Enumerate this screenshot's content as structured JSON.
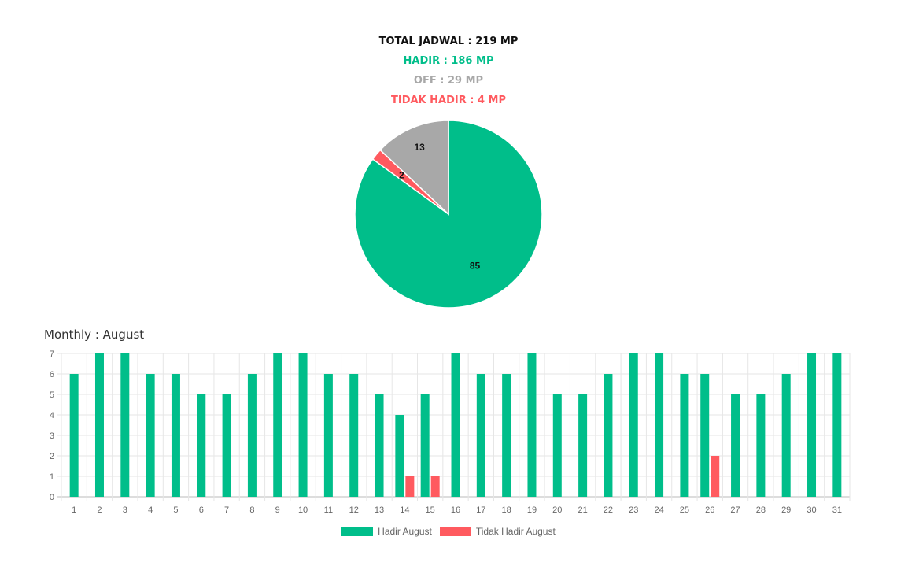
{
  "summary": {
    "total": "TOTAL JADWAL : 219 MP",
    "hadir": "HADIR : 186 MP",
    "off": "OFF : 29 MP",
    "tidak_hadir": "TIDAK HADIR : 4 MP"
  },
  "colors": {
    "hadir": "#00be8a",
    "off": "#a8a8a8",
    "tidak_hadir": "#ff5a5f",
    "total": "#111111"
  },
  "chart_data": [
    {
      "type": "pie",
      "labels": [
        "Hadir",
        "Tidak Hadir",
        "Off"
      ],
      "values": [
        85,
        2,
        13
      ],
      "colors": [
        "#00be8a",
        "#ff5a5f",
        "#a8a8a8"
      ]
    },
    {
      "type": "bar",
      "title": "Monthly : August",
      "categories": [
        "1",
        "2",
        "3",
        "4",
        "5",
        "6",
        "7",
        "8",
        "9",
        "10",
        "11",
        "12",
        "13",
        "14",
        "15",
        "16",
        "17",
        "18",
        "19",
        "20",
        "21",
        "22",
        "23",
        "24",
        "25",
        "26",
        "27",
        "28",
        "29",
        "30",
        "31"
      ],
      "series": [
        {
          "name": "Hadir August",
          "color": "#00be8a",
          "values": [
            6,
            7,
            7,
            6,
            6,
            5,
            5,
            6,
            7,
            7,
            6,
            6,
            5,
            4,
            5,
            7,
            6,
            6,
            7,
            5,
            5,
            6,
            7,
            7,
            6,
            6,
            5,
            5,
            6,
            7,
            7
          ]
        },
        {
          "name": "Tidak Hadir August",
          "color": "#ff5a5f",
          "values": [
            0,
            0,
            0,
            0,
            0,
            0,
            0,
            0,
            0,
            0,
            0,
            0,
            0,
            1,
            1,
            0,
            0,
            0,
            0,
            0,
            0,
            0,
            0,
            0,
            0,
            2,
            0,
            0,
            0,
            0,
            0
          ]
        }
      ],
      "ylim": [
        0,
        7
      ],
      "yticks": [
        0,
        1,
        2,
        3,
        4,
        5,
        6,
        7
      ],
      "grid": true,
      "legend": "bottom"
    }
  ]
}
